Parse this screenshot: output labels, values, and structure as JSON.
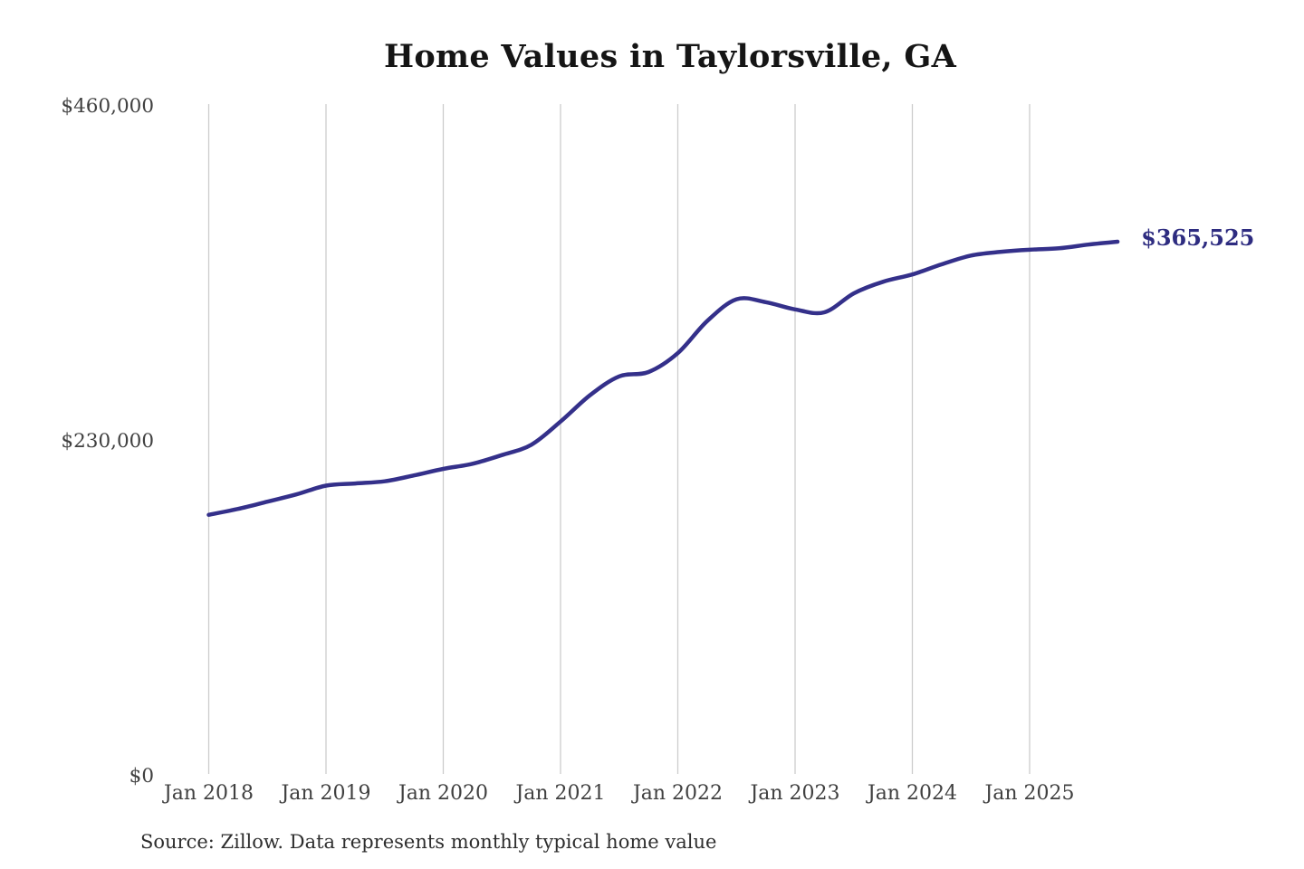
{
  "chart_data": {
    "type": "line",
    "title": "Home Values in Taylorsville, GA",
    "source_note": "Source: Zillow. Data represents monthly typical home value",
    "xlabel": "",
    "ylabel": "",
    "ylim": [
      0,
      460000
    ],
    "grid": "vertical-only",
    "legend": "none",
    "y_ticks": [
      {
        "label": "$0",
        "value": 0
      },
      {
        "label": "$230,000",
        "value": 230000
      },
      {
        "label": "$460,000",
        "value": 460000
      }
    ],
    "x_ticks": [
      {
        "label": "Jan 2018",
        "year": 2018
      },
      {
        "label": "Jan 2019",
        "year": 2019
      },
      {
        "label": "Jan 2020",
        "year": 2020
      },
      {
        "label": "Jan 2021",
        "year": 2021
      },
      {
        "label": "Jan 2022",
        "year": 2022
      },
      {
        "label": "Jan 2023",
        "year": 2023
      },
      {
        "label": "Jan 2024",
        "year": 2024
      },
      {
        "label": "Jan 2025",
        "year": 2025
      }
    ],
    "series": [
      {
        "name": "Typical home value",
        "color": "#34308a",
        "x": [
          2018.0,
          2018.25,
          2018.5,
          2018.75,
          2019.0,
          2019.25,
          2019.5,
          2019.75,
          2020.0,
          2020.25,
          2020.5,
          2020.75,
          2021.0,
          2021.25,
          2021.5,
          2021.75,
          2022.0,
          2022.25,
          2022.5,
          2022.75,
          2023.0,
          2023.25,
          2023.5,
          2023.75,
          2024.0,
          2024.25,
          2024.5,
          2024.75,
          2025.0,
          2025.25,
          2025.5,
          2025.75
        ],
        "x_labels": [
          "Jan 2018",
          "Apr 2018",
          "Jul 2018",
          "Oct 2018",
          "Jan 2019",
          "Apr 2019",
          "Jul 2019",
          "Oct 2019",
          "Jan 2020",
          "Apr 2020",
          "Jul 2020",
          "Oct 2020",
          "Jan 2021",
          "Apr 2021",
          "Jul 2021",
          "Oct 2021",
          "Jan 2022",
          "Apr 2022",
          "Jul 2022",
          "Oct 2022",
          "Jan 2023",
          "Apr 2023",
          "Jul 2023",
          "Oct 2023",
          "Jan 2024",
          "Apr 2024",
          "Jul 2024",
          "Oct 2024",
          "Jan 2025",
          "Apr 2025",
          "Jul 2025",
          "Oct 2025"
        ],
        "values": [
          178000,
          182000,
          187000,
          192000,
          198000,
          199500,
          201000,
          205000,
          209500,
          213000,
          219000,
          226000,
          242000,
          260000,
          273000,
          276000,
          289000,
          311000,
          326000,
          324000,
          319000,
          317000,
          330000,
          338000,
          343000,
          350000,
          356000,
          358500,
          360000,
          361000,
          363500,
          365525
        ]
      }
    ],
    "end_annotation": {
      "label": "$365,525",
      "value": 365525,
      "color": "#2e2c80"
    },
    "colors": {
      "line": "#34308a",
      "grid": "#cccccc",
      "axis_text": "#404040",
      "title_text": "#151515",
      "source_text": "#2e2e2e",
      "background": "#ffffff"
    }
  }
}
